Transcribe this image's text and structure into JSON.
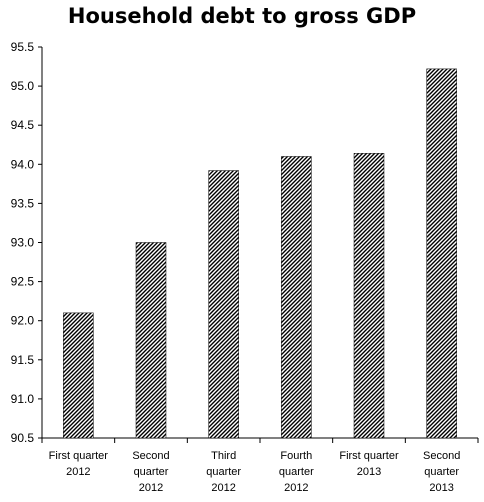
{
  "chart_data": {
    "type": "bar",
    "title": "Household debt to gross GDP",
    "xlabel": "",
    "ylabel": "",
    "categories": [
      "First quarter 2012",
      "Second quarter 2012",
      "Third quarter 2012",
      "Fourth quarter 2012",
      "First quarter 2013",
      "Second quarter 2013"
    ],
    "category_label_lines": [
      [
        "First quarter",
        "2012"
      ],
      [
        "Second",
        "quarter",
        "2012"
      ],
      [
        "Third",
        "quarter",
        "2012"
      ],
      [
        "Fourth",
        "quarter",
        "2012"
      ],
      [
        "First quarter",
        "2013"
      ],
      [
        "Second",
        "quarter",
        "2013"
      ]
    ],
    "values": [
      92.1,
      93.0,
      93.92,
      94.1,
      94.14,
      95.22
    ],
    "ylim": [
      90.5,
      95.5
    ],
    "yticks": [
      "90.5",
      "91.0",
      "91.5",
      "92.0",
      "92.5",
      "93.0",
      "93.5",
      "94.0",
      "94.5",
      "95.0",
      "95.5"
    ],
    "grid": false,
    "legend": "none",
    "bar_pattern": "diagonal-hatch",
    "colors": {
      "bar_stroke": "#000000",
      "hatch": "#000000",
      "axis": "#000000",
      "background": "#ffffff"
    }
  }
}
